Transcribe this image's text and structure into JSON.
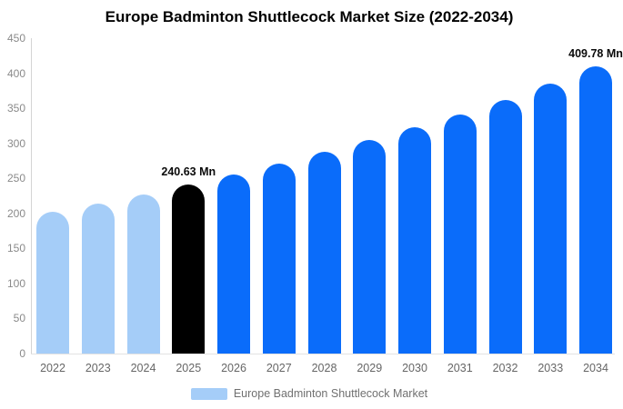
{
  "title": "Europe Badminton Shuttlecock Market Size (2022-2034)",
  "legend": {
    "label": "Europe Badminton Shuttlecock Market",
    "swatch_color": "#a5cdf8"
  },
  "colors": {
    "historical_bar": "#a5cdf8",
    "highlight_bar": "#000000",
    "forecast_bar": "#0a6cfa",
    "axis_line": "#d4d4d4",
    "baseline": "#e2e2e2",
    "ytick_text": "#8a8a8a",
    "xtick_text": "#666666",
    "legend_text": "#707070",
    "title_text": "#000000",
    "data_label_text": "#0a0a0a"
  },
  "chart_data": {
    "type": "bar",
    "title": "Europe Badminton Shuttlecock Market Size (2022-2034)",
    "xlabel": "",
    "ylabel": "",
    "categories": [
      "2022",
      "2023",
      "2024",
      "2025",
      "2026",
      "2027",
      "2028",
      "2029",
      "2030",
      "2031",
      "2032",
      "2033",
      "2034"
    ],
    "values": [
      202,
      213.5,
      226.5,
      240.63,
      255.3,
      270.8,
      287.3,
      304.8,
      322.5,
      341.5,
      362,
      385,
      409.78
    ],
    "bar_colors": [
      "#a5cdf8",
      "#a5cdf8",
      "#a5cdf8",
      "#000000",
      "#0a6cfa",
      "#0a6cfa",
      "#0a6cfa",
      "#0a6cfa",
      "#0a6cfa",
      "#0a6cfa",
      "#0a6cfa",
      "#0a6cfa",
      "#0a6cfa"
    ],
    "data_labels": [
      {
        "index": 3,
        "text": "240.63 Mn"
      },
      {
        "index": 12,
        "text": "409.78 Mn"
      }
    ],
    "ylim": [
      0,
      450
    ],
    "yticks": [
      0,
      50,
      100,
      150,
      200,
      250,
      300,
      350,
      400,
      450
    ],
    "grid": false,
    "legend_position": "bottom",
    "legend_entries": [
      "Europe Badminton Shuttlecock Market"
    ],
    "unit": "Mn"
  }
}
